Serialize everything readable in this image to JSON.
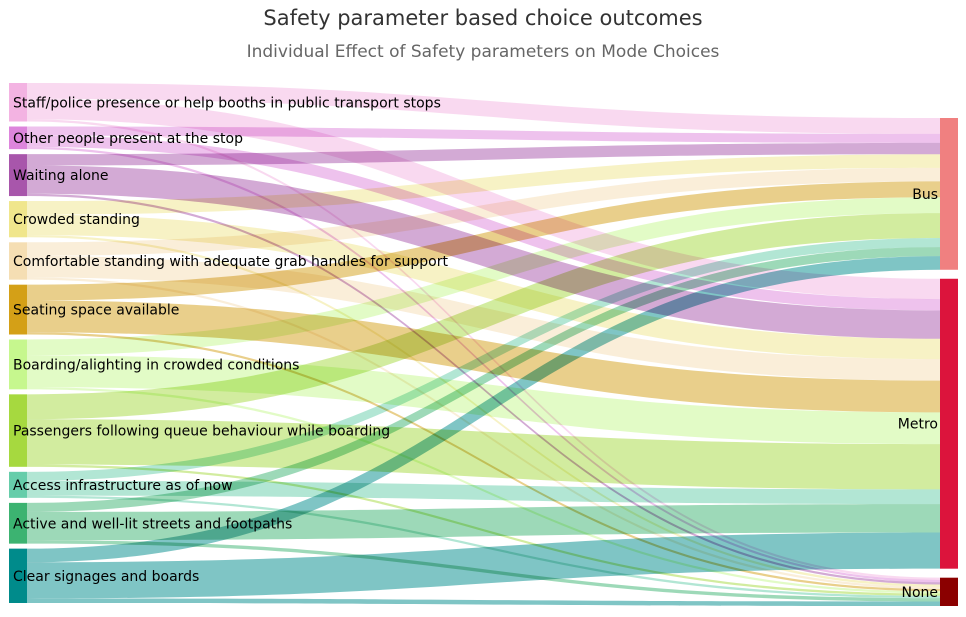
{
  "title": "Safety parameter based choice outcomes",
  "subtitle": "Individual Effect of Safety parameters on Mode Choices",
  "chart_data": {
    "type": "sankey",
    "sources": [
      {
        "name": "Staff/police presence or help booths in public transport stops",
        "color": "#f3b3e2"
      },
      {
        "name": "Other people present at the stop",
        "color": "#dd85dc"
      },
      {
        "name": "Waiting alone",
        "color": "#a856ab"
      },
      {
        "name": "Crowded standing",
        "color": "#f0e68c"
      },
      {
        "name": "Comfortable standing with adequate grab handles for support",
        "color": "#f5deb3"
      },
      {
        "name": "Seating space available",
        "color": "#d4a017"
      },
      {
        "name": "Boarding/alighting in crowded conditions",
        "color": "#c6f78e"
      },
      {
        "name": "Passengers following queue behaviour while boarding",
        "color": "#a6d93f"
      },
      {
        "name": "Access infrastructure as of now",
        "color": "#66cdaa"
      },
      {
        "name": "Active and well-lit streets and footpaths",
        "color": "#3cb371"
      },
      {
        "name": "Clear signages and boards",
        "color": "#008b8b"
      }
    ],
    "targets": [
      {
        "name": "Bus",
        "color": "#f08080"
      },
      {
        "name": "Metro",
        "color": "#dc143c"
      },
      {
        "name": "None",
        "color": "#8b0000"
      }
    ],
    "flows": [
      [
        14,
        18,
        2
      ],
      [
        8,
        10,
        2
      ],
      [
        10,
        25,
        2
      ],
      [
        12,
        18,
        2
      ],
      [
        12,
        19,
        2
      ],
      [
        14,
        28,
        2
      ],
      [
        14,
        28,
        2
      ],
      [
        22,
        40,
        2
      ],
      [
        8,
        13,
        2
      ],
      [
        8,
        25,
        3
      ],
      [
        12,
        32,
        4
      ]
    ]
  }
}
